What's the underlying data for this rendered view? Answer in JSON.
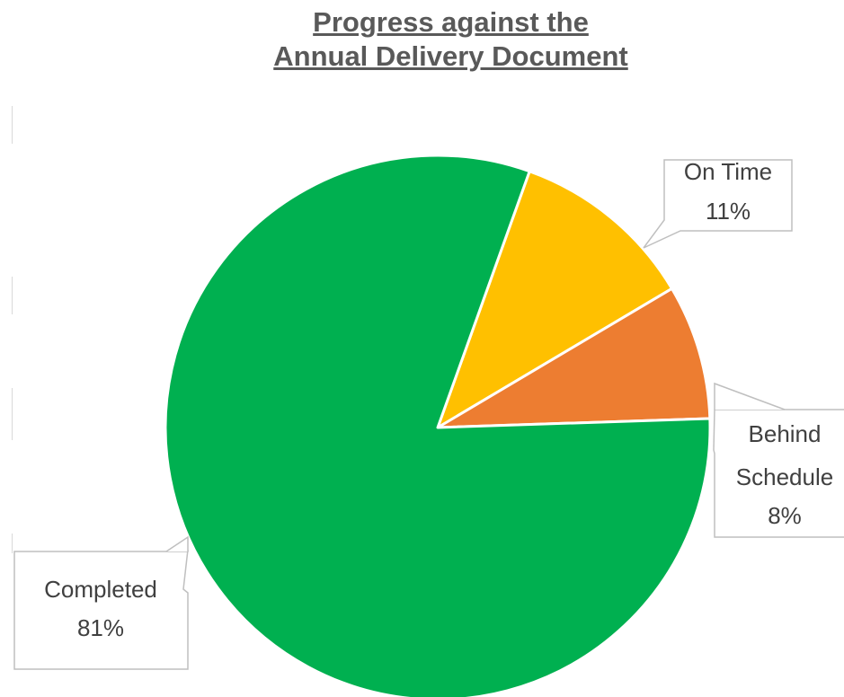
{
  "chart_data": {
    "type": "pie",
    "title_lines": [
      "Progress against the",
      "Annual Delivery Document"
    ],
    "slices": [
      {
        "name": "On Time",
        "value": 11,
        "label": "11%",
        "color": "#FFC000"
      },
      {
        "name": "Behind Schedule",
        "label_lines": [
          "Behind",
          "Schedule"
        ],
        "value": 8,
        "label": "8%",
        "color": "#ED7D31"
      },
      {
        "name": "Completed",
        "value": 81,
        "label": "81%",
        "color": "#00B050"
      }
    ]
  }
}
